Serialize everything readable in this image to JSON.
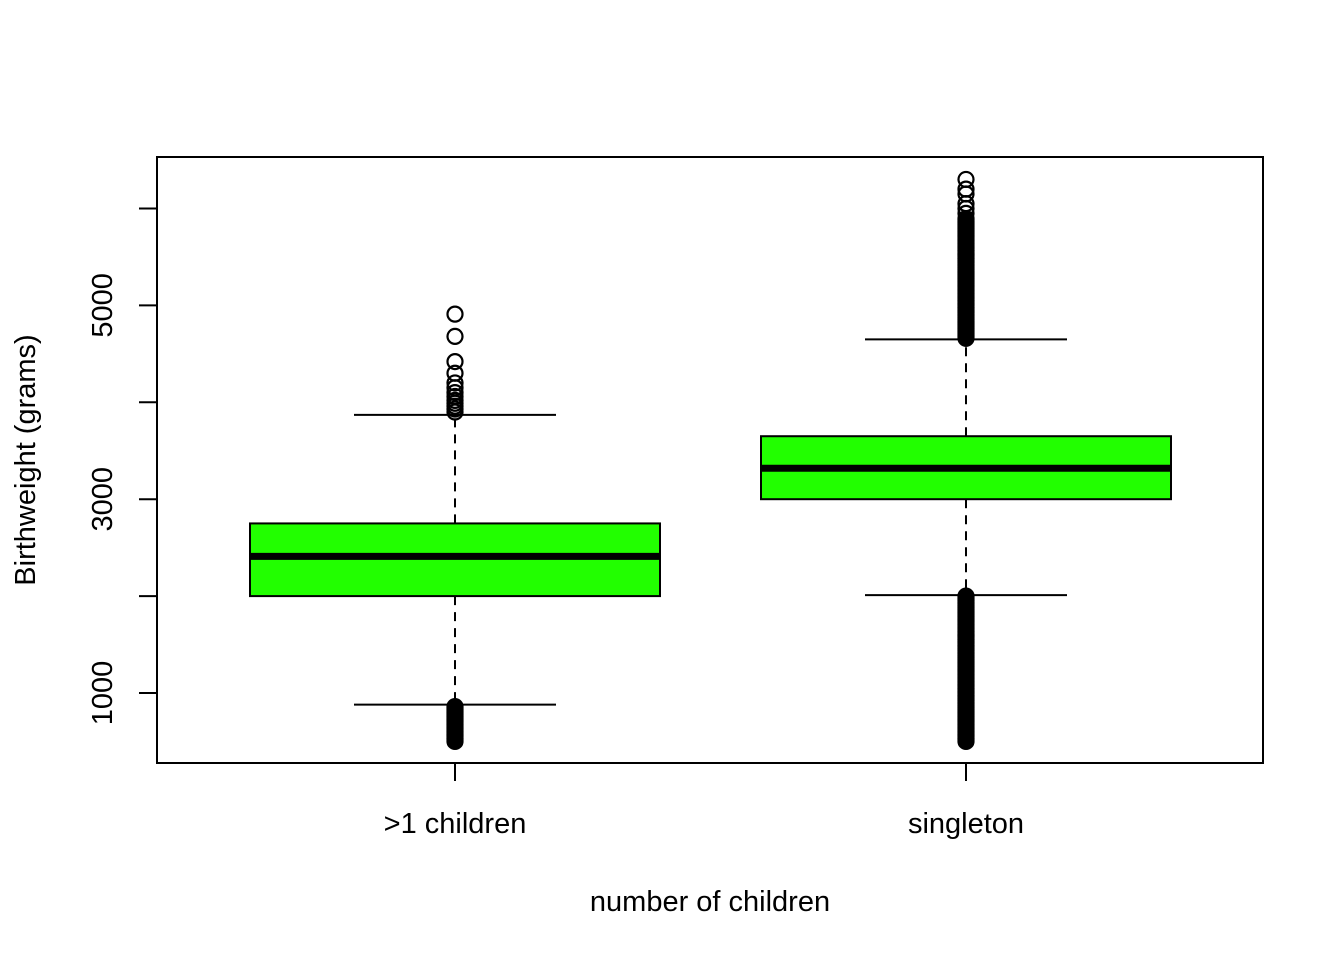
{
  "chart_data": {
    "type": "boxplot",
    "title": "",
    "xlabel": "number of children",
    "ylabel": "Birthweight (grams)",
    "ylim": [
      0,
      6400
    ],
    "y_ticks": [
      1000,
      2000,
      3000,
      4000,
      5000,
      6000
    ],
    "y_tick_labels": [
      "1000",
      "",
      "3000",
      "",
      "5000",
      ""
    ],
    "box_color": "#22ff00",
    "categories": [
      ">1 children",
      "singleton"
    ],
    "boxes": [
      {
        "category": ">1 children",
        "whisker_low": 880,
        "q1": 2000,
        "median": 2410,
        "q3": 2750,
        "whisker_high": 3870,
        "outliers_high": [
          3900,
          3930,
          3960,
          3990,
          4020,
          4060,
          4100,
          4150,
          4200,
          4300,
          4420,
          4680,
          4910
        ],
        "outliers_low_range": [
          500,
          870
        ]
      },
      {
        "category": "singleton",
        "whisker_low": 2010,
        "q1": 3000,
        "median": 3320,
        "q3": 3650,
        "whisker_high": 4650,
        "outliers_high_range": [
          4660,
          5900
        ],
        "outliers_high": [
          5950,
          6000,
          6050,
          6150,
          6200,
          6300
        ],
        "outliers_low_range": [
          500,
          2000
        ]
      }
    ]
  }
}
